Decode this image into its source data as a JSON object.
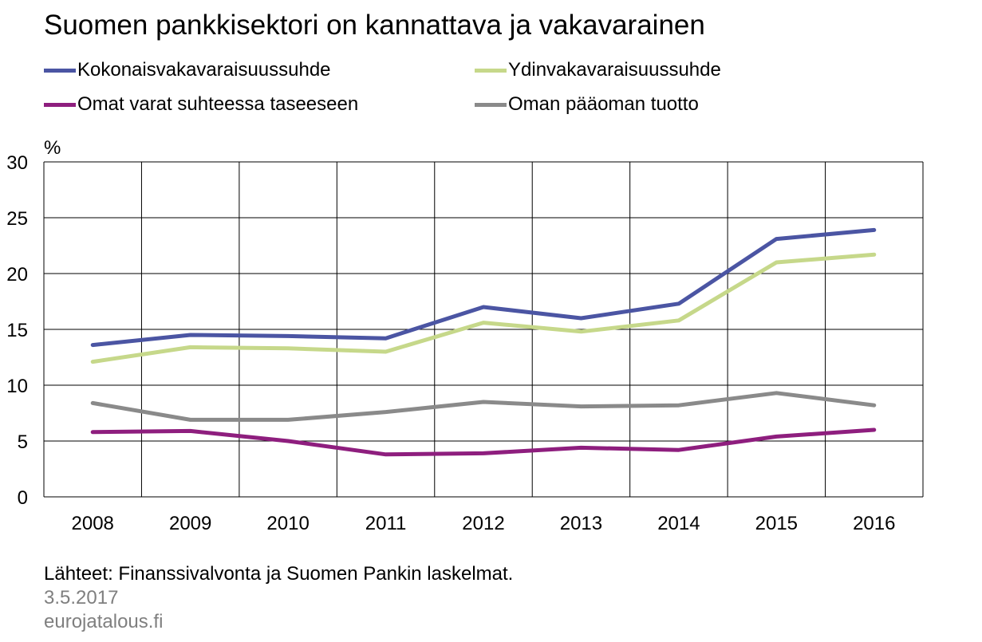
{
  "title": "Suomen pankkisektori on kannattava ja vakavarainen",
  "unit": "%",
  "footer": {
    "source": "Lähteet: Finanssivalvonta ja Suomen Pankin laskelmat.",
    "date": "3.5.2017",
    "site": "eurojatalous.fi"
  },
  "chart_data": {
    "type": "line",
    "title": "Suomen pankkisektori on kannattava ja vakavarainen",
    "ylabel": "%",
    "xlabel": "",
    "x": [
      "2008",
      "2009",
      "2010",
      "2011",
      "2012",
      "2013",
      "2014",
      "2015",
      "2016"
    ],
    "ylim": [
      0,
      30
    ],
    "yticks": [
      0,
      5,
      10,
      15,
      20,
      25,
      30
    ],
    "grid": true,
    "legend_position": "top",
    "series": [
      {
        "name": "Kokonaisvakavaraisuussuhde",
        "color": "#4b55a3",
        "values": [
          13.6,
          14.5,
          14.4,
          14.2,
          17.0,
          16.0,
          17.3,
          23.1,
          23.9
        ]
      },
      {
        "name": "Ydinvakavaraisuussuhde",
        "color": "#c6d88a",
        "values": [
          12.1,
          13.4,
          13.3,
          13.0,
          15.6,
          14.8,
          15.8,
          21.0,
          21.7
        ]
      },
      {
        "name": "Omat varat suhteessa taseeseen",
        "color": "#8e1e7e",
        "values": [
          5.8,
          5.9,
          5.0,
          3.8,
          3.9,
          4.4,
          4.2,
          5.4,
          6.0
        ]
      },
      {
        "name": "Oman pääoman tuotto",
        "color": "#8a8a8a",
        "values": [
          8.4,
          6.9,
          6.9,
          7.6,
          8.5,
          8.1,
          8.2,
          9.3,
          8.2
        ]
      }
    ]
  }
}
